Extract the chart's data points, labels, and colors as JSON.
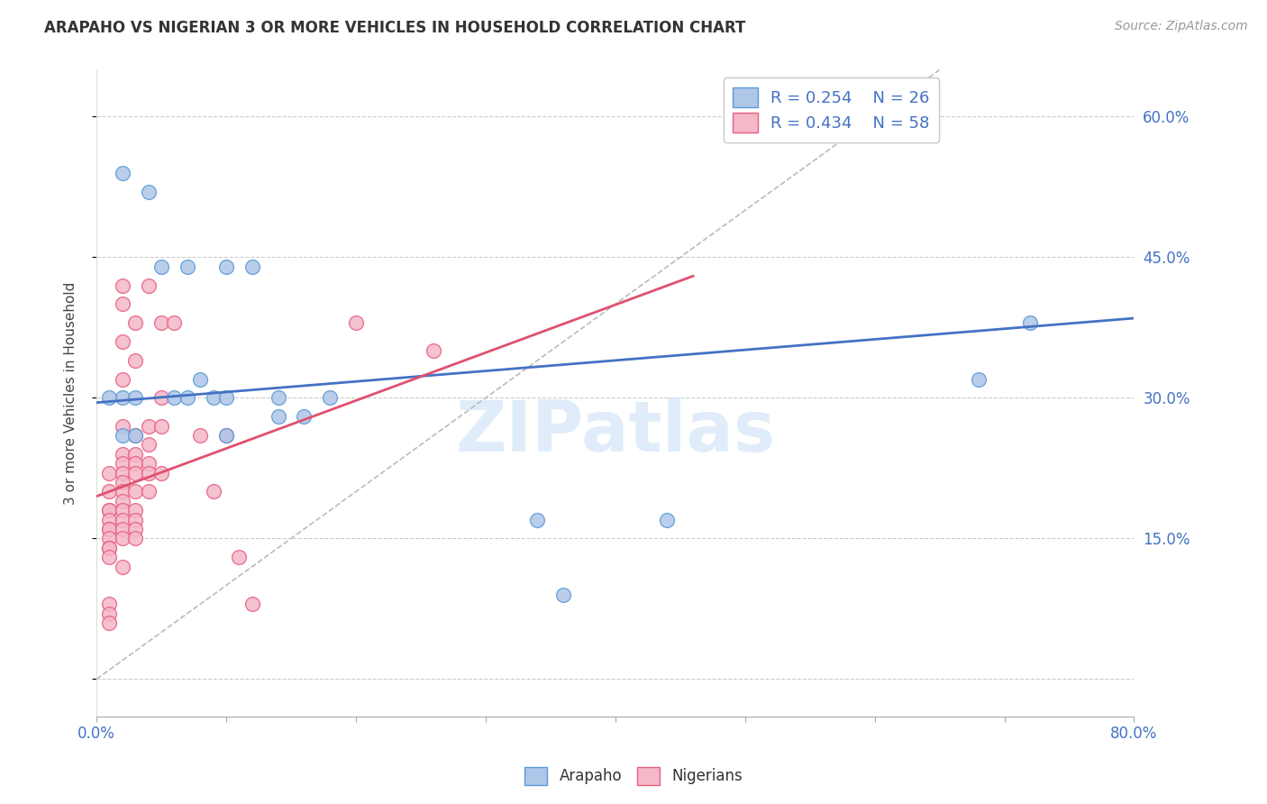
{
  "title": "ARAPAHO VS NIGERIAN 3 OR MORE VEHICLES IN HOUSEHOLD CORRELATION CHART",
  "source": "Source: ZipAtlas.com",
  "ylabel": "3 or more Vehicles in Household",
  "x_min": 0.0,
  "x_max": 0.8,
  "y_min": -0.04,
  "y_max": 0.65,
  "x_ticks": [
    0.0,
    0.1,
    0.2,
    0.3,
    0.4,
    0.5,
    0.6,
    0.7,
    0.8
  ],
  "x_tick_labels": [
    "0.0%",
    "",
    "",
    "",
    "",
    "",
    "",
    "",
    "80.0%"
  ],
  "y_ticks": [
    0.0,
    0.15,
    0.3,
    0.45,
    0.6
  ],
  "y_tick_labels_right": [
    "",
    "15.0%",
    "30.0%",
    "45.0%",
    "60.0%"
  ],
  "grid_color": "#cccccc",
  "background_color": "#ffffff",
  "watermark": "ZIPatlas",
  "legend_color": "#4472c4",
  "arapaho_color": "#aec6e8",
  "nigerian_color": "#f4b8c8",
  "arapaho_edge_color": "#5b9bd5",
  "nigerian_edge_color": "#e86080",
  "arapaho_line_color": "#4472c4",
  "nigerian_line_color": "#e05070",
  "diagonal_color": "#bbbbbb",
  "arapaho_scatter": [
    [
      0.02,
      0.54
    ],
    [
      0.04,
      0.52
    ],
    [
      0.02,
      0.3
    ],
    [
      0.03,
      0.3
    ],
    [
      0.02,
      0.26
    ],
    [
      0.03,
      0.26
    ],
    [
      0.05,
      0.44
    ],
    [
      0.07,
      0.44
    ],
    [
      0.06,
      0.3
    ],
    [
      0.07,
      0.3
    ],
    [
      0.08,
      0.32
    ],
    [
      0.09,
      0.3
    ],
    [
      0.1,
      0.3
    ],
    [
      0.1,
      0.44
    ],
    [
      0.1,
      0.26
    ],
    [
      0.12,
      0.44
    ],
    [
      0.14,
      0.3
    ],
    [
      0.14,
      0.28
    ],
    [
      0.16,
      0.28
    ],
    [
      0.18,
      0.3
    ],
    [
      0.34,
      0.17
    ],
    [
      0.36,
      0.09
    ],
    [
      0.44,
      0.17
    ],
    [
      0.68,
      0.32
    ],
    [
      0.72,
      0.38
    ],
    [
      0.01,
      0.3
    ]
  ],
  "nigerian_scatter": [
    [
      0.01,
      0.22
    ],
    [
      0.01,
      0.2
    ],
    [
      0.01,
      0.18
    ],
    [
      0.01,
      0.18
    ],
    [
      0.01,
      0.17
    ],
    [
      0.01,
      0.16
    ],
    [
      0.01,
      0.16
    ],
    [
      0.01,
      0.15
    ],
    [
      0.01,
      0.14
    ],
    [
      0.01,
      0.14
    ],
    [
      0.01,
      0.13
    ],
    [
      0.01,
      0.08
    ],
    [
      0.01,
      0.07
    ],
    [
      0.01,
      0.06
    ],
    [
      0.02,
      0.42
    ],
    [
      0.02,
      0.4
    ],
    [
      0.02,
      0.36
    ],
    [
      0.02,
      0.32
    ],
    [
      0.02,
      0.27
    ],
    [
      0.02,
      0.24
    ],
    [
      0.02,
      0.23
    ],
    [
      0.02,
      0.22
    ],
    [
      0.02,
      0.21
    ],
    [
      0.02,
      0.2
    ],
    [
      0.02,
      0.19
    ],
    [
      0.02,
      0.18
    ],
    [
      0.02,
      0.17
    ],
    [
      0.02,
      0.16
    ],
    [
      0.02,
      0.15
    ],
    [
      0.02,
      0.12
    ],
    [
      0.03,
      0.38
    ],
    [
      0.03,
      0.34
    ],
    [
      0.03,
      0.26
    ],
    [
      0.03,
      0.24
    ],
    [
      0.03,
      0.23
    ],
    [
      0.03,
      0.22
    ],
    [
      0.03,
      0.2
    ],
    [
      0.03,
      0.18
    ],
    [
      0.03,
      0.17
    ],
    [
      0.03,
      0.16
    ],
    [
      0.03,
      0.15
    ],
    [
      0.04,
      0.42
    ],
    [
      0.04,
      0.27
    ],
    [
      0.04,
      0.25
    ],
    [
      0.04,
      0.23
    ],
    [
      0.04,
      0.22
    ],
    [
      0.04,
      0.2
    ],
    [
      0.05,
      0.38
    ],
    [
      0.05,
      0.3
    ],
    [
      0.05,
      0.27
    ],
    [
      0.05,
      0.22
    ],
    [
      0.06,
      0.38
    ],
    [
      0.08,
      0.26
    ],
    [
      0.09,
      0.2
    ],
    [
      0.1,
      0.26
    ],
    [
      0.11,
      0.13
    ],
    [
      0.12,
      0.08
    ],
    [
      0.2,
      0.38
    ],
    [
      0.26,
      0.35
    ]
  ],
  "arapaho_trendline": [
    [
      0.0,
      0.295
    ],
    [
      0.8,
      0.385
    ]
  ],
  "nigerian_trendline": [
    [
      0.0,
      0.195
    ],
    [
      0.46,
      0.43
    ]
  ],
  "diagonal_line": [
    [
      0.0,
      0.0
    ],
    [
      0.65,
      0.65
    ]
  ]
}
